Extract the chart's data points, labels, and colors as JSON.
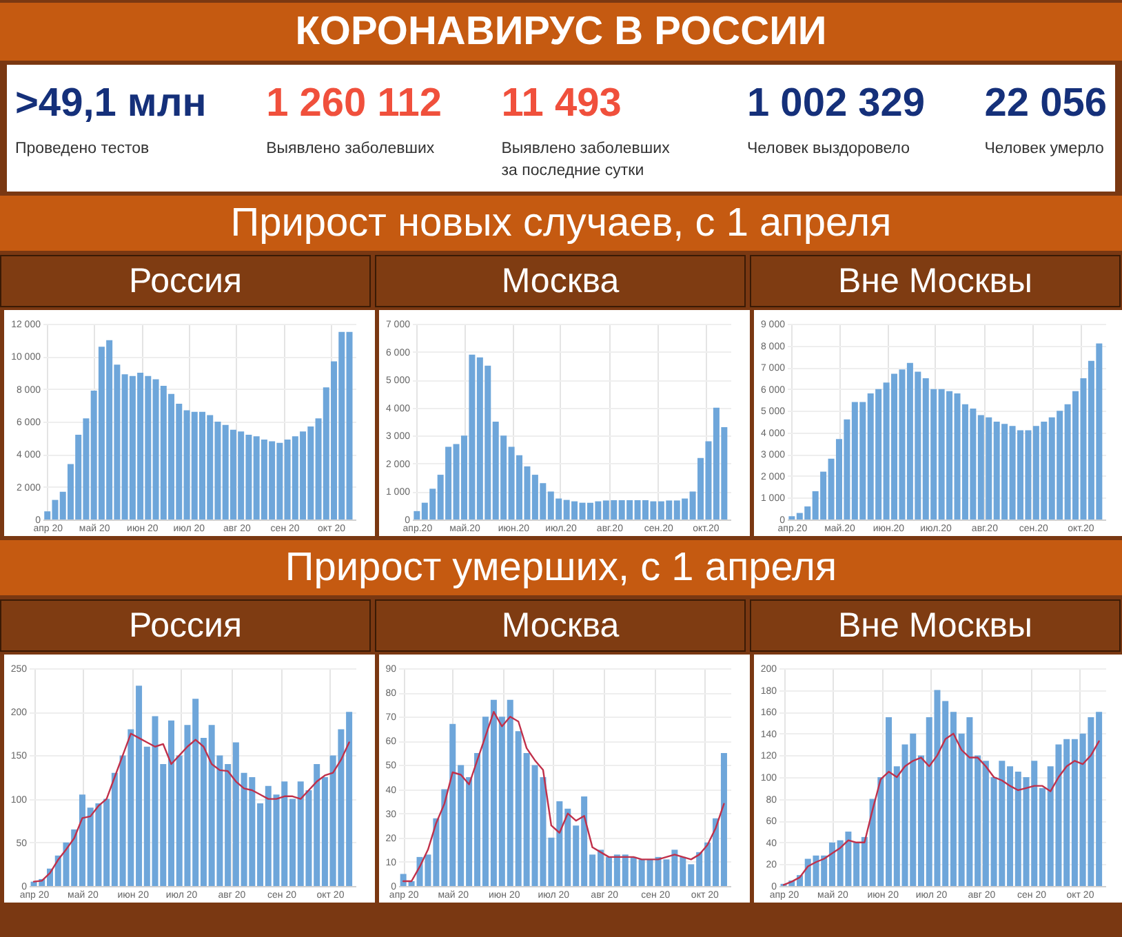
{
  "chart_data": [
    {
      "type": "other",
      "title": "КОРОНАВИРУС В РОССИИ",
      "annotations": [
        ">49,1 млн",
        "Проведено тестов",
        "1 260 112",
        "Выявлено заболевших",
        "11 493",
        "Выявлено заболевших за последние сутки",
        "1 002 329",
        "Человек выздоровело",
        "22 056",
        "Человек умерло"
      ],
      "colors": [
        "#15307a",
        "#f0503c",
        "#f0503c",
        "#15307a",
        "#15307a"
      ]
    },
    {
      "type": "other",
      "title": "Прирост новых случаев, с 1 апреля"
    },
    {
      "type": "bar",
      "title": "Россия",
      "x": [
        "2020-04-01",
        "2020-04-06",
        "2020-04-11",
        "2020-04-16",
        "2020-04-21",
        "2020-04-26",
        "2020-05-01",
        "2020-05-06",
        "2020-05-11",
        "2020-05-16",
        "2020-05-21",
        "2020-05-26",
        "2020-05-31",
        "2020-06-05",
        "2020-06-10",
        "2020-06-15",
        "2020-06-20",
        "2020-06-25",
        "2020-06-30",
        "2020-07-05",
        "2020-07-10",
        "2020-07-15",
        "2020-07-20",
        "2020-07-25",
        "2020-07-30",
        "2020-08-04",
        "2020-08-09",
        "2020-08-14",
        "2020-08-19",
        "2020-08-24",
        "2020-08-29",
        "2020-09-03",
        "2020-09-08",
        "2020-09-13",
        "2020-09-18",
        "2020-09-23",
        "2020-09-28",
        "2020-10-03",
        "2020-10-08",
        "2020-10-13"
      ],
      "series": [
        {
          "color": "#6ea6da",
          "values": [
            500,
            1200,
            1700,
            3400,
            5200,
            6200,
            7900,
            10600,
            11000,
            9500,
            8900,
            8800,
            9000,
            8800,
            8600,
            8200,
            7700,
            7100,
            6700,
            6600,
            6600,
            6400,
            6000,
            5800,
            5500,
            5400,
            5200,
            5100,
            4900,
            4800,
            4700,
            4900,
            5100,
            5400,
            5700,
            6200,
            8100,
            9700,
            11500,
            11500
          ]
        }
      ],
      "xlim": [
        "2020-03-29",
        "2020-10-17"
      ],
      "xticks": [
        {
          "value": "2020-04-01",
          "label": "апр 20"
        },
        {
          "value": "2020-05-01",
          "label": "май 20"
        },
        {
          "value": "2020-06-01",
          "label": "июн 20"
        },
        {
          "value": "2020-07-01",
          "label": "июл 20"
        },
        {
          "value": "2020-08-01",
          "label": "авг 20"
        },
        {
          "value": "2020-09-01",
          "label": "сен 20"
        },
        {
          "value": "2020-10-01",
          "label": "окт 20"
        }
      ],
      "ylim": [
        0,
        12000
      ],
      "yticks": [
        0,
        {
          "value": 2000,
          "label": "2 000"
        },
        {
          "value": 4000,
          "label": "4 000"
        },
        {
          "value": 6000,
          "label": "6 000"
        },
        {
          "value": 8000,
          "label": "8 000"
        },
        {
          "value": 10000,
          "label": "10 000"
        },
        {
          "value": 12000,
          "label": "12 000"
        }
      ],
      "grid": true
    },
    {
      "type": "bar",
      "title": "Москва",
      "x": [
        "2020-04-01",
        "2020-04-06",
        "2020-04-11",
        "2020-04-16",
        "2020-04-21",
        "2020-04-26",
        "2020-05-01",
        "2020-05-06",
        "2020-05-11",
        "2020-05-16",
        "2020-05-21",
        "2020-05-26",
        "2020-05-31",
        "2020-06-05",
        "2020-06-10",
        "2020-06-15",
        "2020-06-20",
        "2020-06-25",
        "2020-06-30",
        "2020-07-05",
        "2020-07-10",
        "2020-07-15",
        "2020-07-20",
        "2020-07-25",
        "2020-07-30",
        "2020-08-04",
        "2020-08-09",
        "2020-08-14",
        "2020-08-19",
        "2020-08-24",
        "2020-08-29",
        "2020-09-03",
        "2020-09-08",
        "2020-09-13",
        "2020-09-18",
        "2020-09-23",
        "2020-09-28",
        "2020-10-03",
        "2020-10-08",
        "2020-10-13"
      ],
      "series": [
        {
          "color": "#6ea6da",
          "values": [
            300,
            600,
            1100,
            1600,
            2600,
            2700,
            3000,
            5900,
            5800,
            5500,
            3500,
            3000,
            2600,
            2300,
            1900,
            1600,
            1300,
            1000,
            750,
            700,
            650,
            600,
            600,
            650,
            680,
            690,
            690,
            690,
            690,
            690,
            650,
            650,
            680,
            680,
            750,
            1000,
            2200,
            2800,
            4000,
            3300
          ]
        }
      ],
      "xlim": [
        "2020-03-29",
        "2020-10-17"
      ],
      "xticks": [
        {
          "value": "2020-04-01",
          "label": "апр.20"
        },
        {
          "value": "2020-05-01",
          "label": "май.20"
        },
        {
          "value": "2020-06-01",
          "label": "июн.20"
        },
        {
          "value": "2020-07-01",
          "label": "июл.20"
        },
        {
          "value": "2020-08-01",
          "label": "авг.20"
        },
        {
          "value": "2020-09-01",
          "label": "сен.20"
        },
        {
          "value": "2020-10-01",
          "label": "окт.20"
        }
      ],
      "ylim": [
        0,
        7000
      ],
      "yticks": [
        0,
        {
          "value": 1000,
          "label": "1 000"
        },
        {
          "value": 2000,
          "label": "2 000"
        },
        {
          "value": 3000,
          "label": "3 000"
        },
        {
          "value": 4000,
          "label": "4 000"
        },
        {
          "value": 5000,
          "label": "5 000"
        },
        {
          "value": 6000,
          "label": "6 000"
        },
        {
          "value": 7000,
          "label": "7 000"
        }
      ],
      "grid": true
    },
    {
      "type": "bar",
      "title": "Вне Москвы",
      "x": [
        "2020-04-01",
        "2020-04-06",
        "2020-04-11",
        "2020-04-16",
        "2020-04-21",
        "2020-04-26",
        "2020-05-01",
        "2020-05-06",
        "2020-05-11",
        "2020-05-16",
        "2020-05-21",
        "2020-05-26",
        "2020-05-31",
        "2020-06-05",
        "2020-06-10",
        "2020-06-15",
        "2020-06-20",
        "2020-06-25",
        "2020-06-30",
        "2020-07-05",
        "2020-07-10",
        "2020-07-15",
        "2020-07-20",
        "2020-07-25",
        "2020-07-30",
        "2020-08-04",
        "2020-08-09",
        "2020-08-14",
        "2020-08-19",
        "2020-08-24",
        "2020-08-29",
        "2020-09-03",
        "2020-09-08",
        "2020-09-13",
        "2020-09-18",
        "2020-09-23",
        "2020-09-28",
        "2020-10-03",
        "2020-10-08",
        "2020-10-13"
      ],
      "series": [
        {
          "color": "#6ea6da",
          "values": [
            150,
            300,
            600,
            1300,
            2200,
            2800,
            3700,
            4600,
            5400,
            5400,
            5800,
            6000,
            6300,
            6700,
            6900,
            7200,
            6800,
            6500,
            6000,
            6000,
            5900,
            5800,
            5300,
            5100,
            4800,
            4700,
            4500,
            4400,
            4300,
            4100,
            4100,
            4300,
            4500,
            4700,
            5000,
            5300,
            5900,
            6500,
            7300,
            8100
          ]
        }
      ],
      "xlim": [
        "2020-03-29",
        "2020-10-17"
      ],
      "xticks": [
        {
          "value": "2020-04-01",
          "label": "апр.20"
        },
        {
          "value": "2020-05-01",
          "label": "май.20"
        },
        {
          "value": "2020-06-01",
          "label": "июн.20"
        },
        {
          "value": "2020-07-01",
          "label": "июл.20"
        },
        {
          "value": "2020-08-01",
          "label": "авг.20"
        },
        {
          "value": "2020-09-01",
          "label": "сен.20"
        },
        {
          "value": "2020-10-01",
          "label": "окт.20"
        }
      ],
      "ylim": [
        0,
        9000
      ],
      "yticks": [
        0,
        {
          "value": 1000,
          "label": "1 000"
        },
        {
          "value": 2000,
          "label": "2 000"
        },
        {
          "value": 3000,
          "label": "3 000"
        },
        {
          "value": 4000,
          "label": "4 000"
        },
        {
          "value": 5000,
          "label": "5 000"
        },
        {
          "value": 6000,
          "label": "6 000"
        },
        {
          "value": 7000,
          "label": "7 000"
        },
        {
          "value": 8000,
          "label": "8 000"
        },
        {
          "value": 9000,
          "label": "9 000"
        }
      ],
      "grid": true
    },
    {
      "type": "other",
      "title": "Прирост умерших, с 1 апреля"
    },
    {
      "type": "bar",
      "title": "Россия",
      "x": [
        "2020-04-01",
        "2020-04-06",
        "2020-04-11",
        "2020-04-16",
        "2020-04-21",
        "2020-04-26",
        "2020-05-01",
        "2020-05-06",
        "2020-05-11",
        "2020-05-16",
        "2020-05-21",
        "2020-05-26",
        "2020-05-31",
        "2020-06-05",
        "2020-06-10",
        "2020-06-15",
        "2020-06-20",
        "2020-06-25",
        "2020-06-30",
        "2020-07-05",
        "2020-07-10",
        "2020-07-15",
        "2020-07-20",
        "2020-07-25",
        "2020-07-30",
        "2020-08-04",
        "2020-08-09",
        "2020-08-14",
        "2020-08-19",
        "2020-08-24",
        "2020-08-29",
        "2020-09-03",
        "2020-09-08",
        "2020-09-13",
        "2020-09-18",
        "2020-09-23",
        "2020-09-28",
        "2020-10-03",
        "2020-10-08",
        "2020-10-13"
      ],
      "series": [
        {
          "color": "#6ea6da",
          "values": [
            5,
            8,
            20,
            35,
            50,
            65,
            105,
            90,
            95,
            100,
            130,
            150,
            180,
            230,
            160,
            195,
            140,
            190,
            150,
            185,
            215,
            170,
            185,
            150,
            140,
            165,
            130,
            125,
            95,
            115,
            105,
            120,
            100,
            120,
            110,
            140,
            125,
            150,
            180,
            200
          ]
        },
        {
          "type": "line",
          "color": "#c0304a",
          "values": [
            5,
            6,
            15,
            30,
            42,
            55,
            78,
            80,
            92,
            100,
            125,
            150,
            175,
            170,
            165,
            160,
            163,
            140,
            150,
            160,
            168,
            160,
            140,
            133,
            132,
            120,
            112,
            110,
            105,
            100,
            100,
            103,
            103,
            100,
            110,
            120,
            127,
            130,
            145,
            165
          ]
        }
      ],
      "xlim": [
        "2020-03-29",
        "2020-10-17"
      ],
      "xticks": [
        {
          "value": "2020-04-01",
          "label": "апр 20"
        },
        {
          "value": "2020-05-01",
          "label": "май 20"
        },
        {
          "value": "2020-06-01",
          "label": "июн 20"
        },
        {
          "value": "2020-07-01",
          "label": "июл 20"
        },
        {
          "value": "2020-08-01",
          "label": "авг 20"
        },
        {
          "value": "2020-09-01",
          "label": "сен 20"
        },
        {
          "value": "2020-10-01",
          "label": "окт 20"
        }
      ],
      "ylim": [
        0,
        250
      ],
      "yticks": [
        0,
        50,
        100,
        150,
        200,
        250
      ],
      "grid": true
    },
    {
      "type": "bar",
      "title": "Москва",
      "x": [
        "2020-04-01",
        "2020-04-06",
        "2020-04-11",
        "2020-04-16",
        "2020-04-21",
        "2020-04-26",
        "2020-05-01",
        "2020-05-06",
        "2020-05-11",
        "2020-05-16",
        "2020-05-21",
        "2020-05-26",
        "2020-05-31",
        "2020-06-05",
        "2020-06-10",
        "2020-06-15",
        "2020-06-20",
        "2020-06-25",
        "2020-06-30",
        "2020-07-05",
        "2020-07-10",
        "2020-07-15",
        "2020-07-20",
        "2020-07-25",
        "2020-07-30",
        "2020-08-04",
        "2020-08-09",
        "2020-08-14",
        "2020-08-19",
        "2020-08-24",
        "2020-08-29",
        "2020-09-03",
        "2020-09-08",
        "2020-09-13",
        "2020-09-18",
        "2020-09-23",
        "2020-09-28",
        "2020-10-03",
        "2020-10-08",
        "2020-10-13"
      ],
      "series": [
        {
          "color": "#6ea6da",
          "values": [
            5,
            2,
            12,
            13,
            28,
            40,
            67,
            50,
            45,
            55,
            70,
            77,
            70,
            77,
            64,
            55,
            50,
            45,
            20,
            35,
            32,
            25,
            37,
            13,
            15,
            12,
            13,
            13,
            12,
            11,
            11,
            12,
            11,
            15,
            12,
            9,
            14,
            18,
            28,
            55
          ]
        },
        {
          "type": "line",
          "color": "#c0304a",
          "values": [
            2,
            2,
            8,
            15,
            26,
            34,
            47,
            46,
            42,
            52,
            62,
            72,
            66,
            70,
            68,
            57,
            52,
            48,
            25,
            22,
            30,
            27,
            29,
            16,
            14,
            12,
            12,
            12,
            12,
            11,
            11,
            11,
            12,
            13,
            12,
            11,
            13,
            17,
            24,
            34
          ]
        }
      ],
      "xlim": [
        "2020-03-29",
        "2020-10-17"
      ],
      "xticks": [
        {
          "value": "2020-04-01",
          "label": "апр 20"
        },
        {
          "value": "2020-05-01",
          "label": "май 20"
        },
        {
          "value": "2020-06-01",
          "label": "июн 20"
        },
        {
          "value": "2020-07-01",
          "label": "июл 20"
        },
        {
          "value": "2020-08-01",
          "label": "авг 20"
        },
        {
          "value": "2020-09-01",
          "label": "сен 20"
        },
        {
          "value": "2020-10-01",
          "label": "окт 20"
        }
      ],
      "ylim": [
        0,
        90
      ],
      "yticks": [
        0,
        10,
        20,
        30,
        40,
        50,
        60,
        70,
        80,
        90
      ],
      "grid": true
    },
    {
      "type": "bar",
      "title": "Вне Москвы",
      "x": [
        "2020-04-01",
        "2020-04-06",
        "2020-04-11",
        "2020-04-16",
        "2020-04-21",
        "2020-04-26",
        "2020-05-01",
        "2020-05-06",
        "2020-05-11",
        "2020-05-16",
        "2020-05-21",
        "2020-05-26",
        "2020-05-31",
        "2020-06-05",
        "2020-06-10",
        "2020-06-15",
        "2020-06-20",
        "2020-06-25",
        "2020-06-30",
        "2020-07-05",
        "2020-07-10",
        "2020-07-15",
        "2020-07-20",
        "2020-07-25",
        "2020-07-30",
        "2020-08-04",
        "2020-08-09",
        "2020-08-14",
        "2020-08-19",
        "2020-08-24",
        "2020-08-29",
        "2020-09-03",
        "2020-09-08",
        "2020-09-13",
        "2020-09-18",
        "2020-09-23",
        "2020-09-28",
        "2020-10-03",
        "2020-10-08",
        "2020-10-13"
      ],
      "series": [
        {
          "color": "#6ea6da",
          "values": [
            2,
            5,
            10,
            25,
            28,
            28,
            40,
            42,
            50,
            40,
            45,
            80,
            100,
            155,
            110,
            130,
            140,
            120,
            155,
            180,
            170,
            160,
            140,
            155,
            120,
            115,
            100,
            115,
            110,
            105,
            100,
            115,
            90,
            110,
            130,
            135,
            135,
            140,
            155,
            160
          ]
        },
        {
          "type": "line",
          "color": "#c0304a",
          "values": [
            1,
            4,
            8,
            18,
            22,
            25,
            30,
            35,
            42,
            40,
            40,
            70,
            98,
            105,
            100,
            110,
            115,
            118,
            110,
            120,
            135,
            140,
            125,
            118,
            118,
            110,
            100,
            97,
            92,
            88,
            90,
            92,
            92,
            87,
            100,
            110,
            115,
            112,
            120,
            133
          ]
        }
      ],
      "xlim": [
        "2020-03-29",
        "2020-10-17"
      ],
      "xticks": [
        {
          "value": "2020-04-01",
          "label": "апр 20"
        },
        {
          "value": "2020-05-01",
          "label": "май 20"
        },
        {
          "value": "2020-06-01",
          "label": "июн 20"
        },
        {
          "value": "2020-07-01",
          "label": "июл 20"
        },
        {
          "value": "2020-08-01",
          "label": "авг 20"
        },
        {
          "value": "2020-09-01",
          "label": "сен 20"
        },
        {
          "value": "2020-10-01",
          "label": "окт 20"
        }
      ],
      "ylim": [
        0,
        200
      ],
      "yticks": [
        0,
        20,
        40,
        60,
        80,
        100,
        120,
        140,
        160,
        180,
        200
      ],
      "grid": true
    }
  ]
}
